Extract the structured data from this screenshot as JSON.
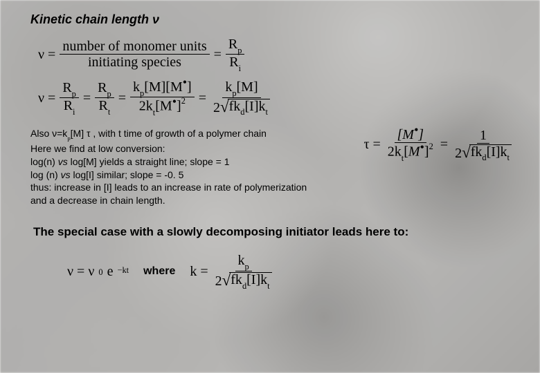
{
  "title": "Kinetic chain length ν",
  "eq1": {
    "lhs": "ν =",
    "frac1_num": "number of monomer units",
    "frac1_den": "initiating species",
    "eq": "=",
    "frac2_num_a": "R",
    "frac2_num_sub_a": "p",
    "frac2_den_a": "R",
    "frac2_den_sub_a": "i"
  },
  "eq2": {
    "lhs": "ν =",
    "t1_num": "R",
    "t1_num_sub": "p",
    "t1_den": "R",
    "t1_den_sub": "i",
    "t2_num": "R",
    "t2_num_sub": "p",
    "t2_den": "R",
    "t2_den_sub": "t",
    "t3_num": "k",
    "t3_num_sub": "p",
    "t3_num_rest": "[M][M  ]",
    "t3_den_a": "2k",
    "t3_den_sub": "t",
    "t3_den_rest": "[M  ]",
    "t3_den_sup": "2",
    "t4_num": "k",
    "t4_num_sub": "p",
    "t4_num_rest": "[M]",
    "t4_den_pre": "2",
    "t4_den_sqrt_a": "fk",
    "t4_den_sqrt_sub1": "d",
    "t4_den_sqrt_mid": "[I]k",
    "t4_den_sqrt_sub2": "t",
    "eq": "="
  },
  "body": {
    "l1a": "Also ν=k",
    "l1sub": "p",
    "l1b": "[M] τ  , with t time of growth of a polymer chain",
    "l2": "Here we find at low conversion:",
    "l3a": "log(n) ",
    "l3i": "vs",
    "l3b": " log[M] yields a straight line; slope = 1",
    "l4a": "log (n) ",
    "l4i": "vs",
    "l4b": " log[I] similar; slope = -0. 5",
    "l5": "thus: increase in [I] leads to an increase in rate of polymerization",
    "l6": "and a decrease in chain length."
  },
  "tau": {
    "lhs": "τ =",
    "f1_num": "[M  ]",
    "f1_den_a": "2k",
    "f1_den_sub": "t",
    "f1_den_rest": "[M  ]",
    "f1_den_sup": "2",
    "eq": "=",
    "f2_num": "1",
    "f2_den_pre": "2",
    "f2_den_sqrt_a": "fk",
    "f2_den_sqrt_sub1": "d",
    "f2_den_sqrt_mid": "[I]k",
    "f2_den_sqrt_sub2": "t"
  },
  "special": "The special case with a slowly decomposing initiator leads here to:",
  "final": {
    "nu": "ν = ν",
    "nu_sub": "0",
    "nu_exp_a": "e",
    "nu_exp_sup": "−kt",
    "where": "where",
    "k_lhs": "k =",
    "k_num": "k",
    "k_num_sub": "p",
    "k_den_pre": "2",
    "k_den_sqrt_a": "fk",
    "k_den_sqrt_sub1": "d",
    "k_den_sqrt_mid": "[I]k",
    "k_den_sqrt_sub2": "t"
  },
  "colors": {
    "text": "#000000",
    "bg_base": "#bbbab8"
  }
}
